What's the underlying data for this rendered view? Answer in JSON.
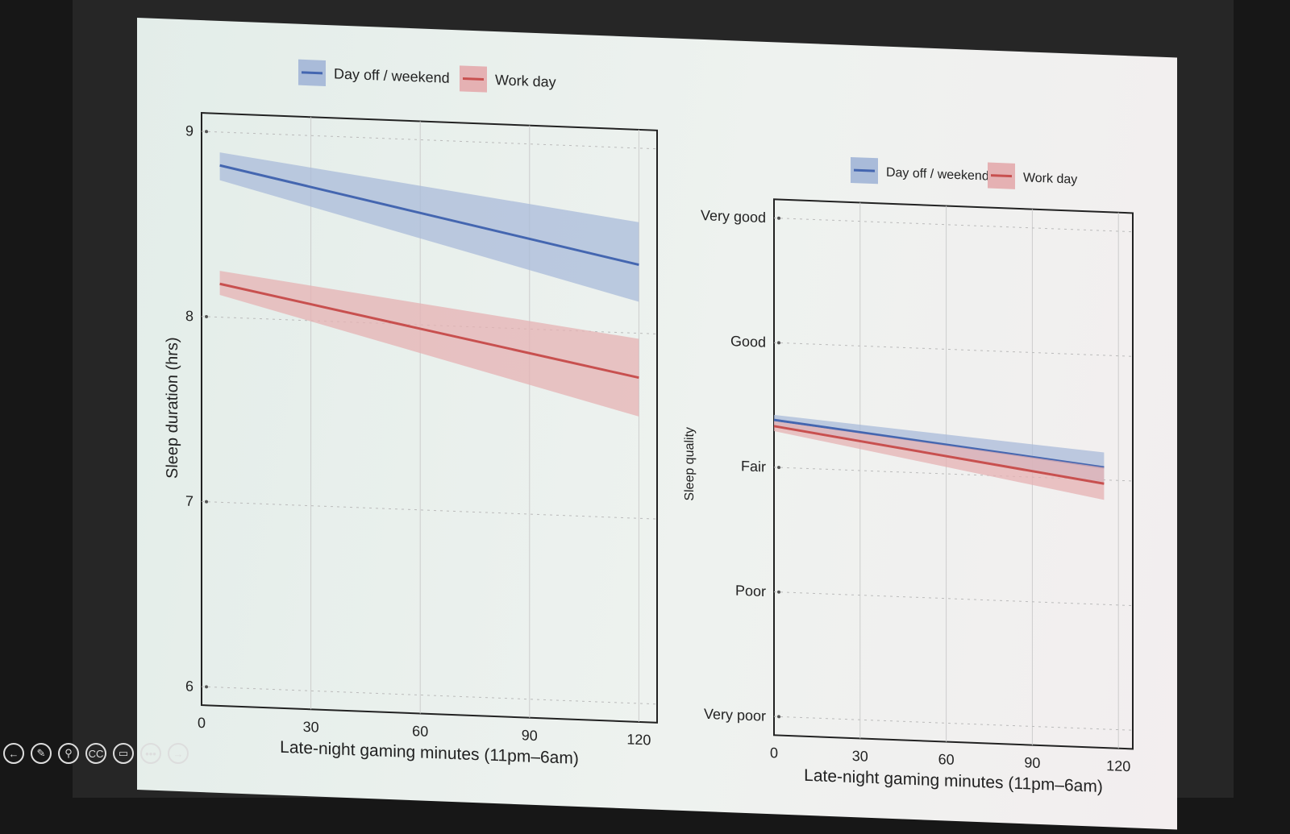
{
  "colors": {
    "blue": "#4466b0",
    "red": "#c8504f",
    "blue_band": "#a9bbd9",
    "red_band": "#e5b1b3"
  },
  "controls": [
    {
      "name": "back",
      "glyph": "←"
    },
    {
      "name": "pen",
      "glyph": "✎"
    },
    {
      "name": "zoom",
      "glyph": "⚲"
    },
    {
      "name": "captions",
      "glyph": "CC"
    },
    {
      "name": "screen",
      "glyph": "▭"
    },
    {
      "name": "more",
      "glyph": "•••"
    },
    {
      "name": "forward",
      "glyph": "→"
    }
  ],
  "chart_data": [
    {
      "type": "line",
      "xlabel": "Late-night gaming minutes (11pm–6am)",
      "ylabel": "Sleep duration (hrs)",
      "xlim": [
        0,
        125
      ],
      "ylim": [
        5.9,
        9.1
      ],
      "xticks": [
        0,
        30,
        60,
        90,
        120
      ],
      "yticks": [
        6,
        7,
        8,
        9
      ],
      "ytick_labels": [
        "6",
        "7",
        "8",
        "9"
      ],
      "grid": true,
      "legend": "top",
      "series": [
        {
          "name": "Day off / weekend",
          "color": "blue",
          "x": [
            5,
            120
          ],
          "y": [
            8.82,
            8.37
          ],
          "ci_low": [
            8.74,
            8.17
          ],
          "ci_high": [
            8.89,
            8.6
          ]
        },
        {
          "name": "Work day",
          "color": "red",
          "x": [
            5,
            120
          ],
          "y": [
            8.18,
            7.76
          ],
          "ci_low": [
            8.12,
            7.55
          ],
          "ci_high": [
            8.25,
            7.97
          ]
        }
      ]
    },
    {
      "type": "line",
      "xlabel": "Late-night gaming minutes (11pm–6am)",
      "ylabel": "Sleep quality",
      "xlim": [
        0,
        125
      ],
      "ylim": [
        0.85,
        5.15
      ],
      "xticks": [
        0,
        30,
        60,
        90,
        120
      ],
      "yticks": [
        1,
        2,
        3,
        4,
        5
      ],
      "ytick_labels": [
        "Very poor",
        "Poor",
        "Fair",
        "Good",
        "Very good"
      ],
      "grid": true,
      "legend": "top",
      "series": [
        {
          "name": "Day off / weekend",
          "color": "blue",
          "x": [
            0,
            115
          ],
          "y": [
            3.38,
            3.1
          ],
          "ci_low": [
            3.34,
            2.98
          ],
          "ci_high": [
            3.42,
            3.22
          ]
        },
        {
          "name": "Work day",
          "color": "red",
          "x": [
            0,
            115
          ],
          "y": [
            3.33,
            2.97
          ],
          "ci_low": [
            3.29,
            2.84
          ],
          "ci_high": [
            3.37,
            3.1
          ]
        }
      ]
    }
  ]
}
